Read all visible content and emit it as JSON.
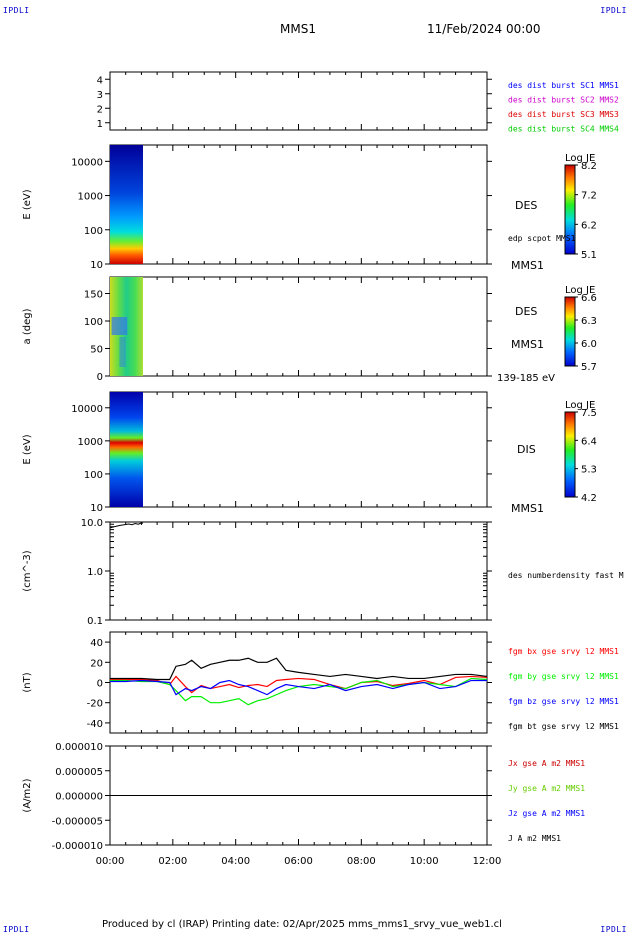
{
  "corners": {
    "tl": "IPDLI",
    "tr": "IPDLI",
    "bl": "IPDLI",
    "br": "IPDLI"
  },
  "header": {
    "spacecraft": "MMS1",
    "date": "11/Feb/2024 00:00"
  },
  "footer": {
    "text": "Produced by cl (IRAP)   Printing date: 02/Apr/2025   mms_mms1_srvy_vue_web1.cl"
  },
  "chart_data": [
    {
      "type": "line",
      "id": "sc-availability",
      "ylim": [
        0.5,
        4.5
      ],
      "yticks": [
        "1",
        "2",
        "3",
        "4"
      ],
      "legend": [
        {
          "label": "des dist burst SC1 MMS1",
          "color": "#0000ff"
        },
        {
          "label": "des dist burst SC2 MMS2",
          "color": "#cc00cc"
        },
        {
          "label": "des dist burst SC3 MMS3",
          "color": "#dd0000"
        },
        {
          "label": "des dist burst SC4 MMS4",
          "color": "#00cc00"
        }
      ]
    },
    {
      "type": "heatmap",
      "id": "des-energy",
      "ylabel": "E (eV)",
      "yscale": "log",
      "yticks": [
        "10",
        "100",
        "1000",
        "10000"
      ],
      "right_labels": [
        "DES",
        "edp scpot MMS1",
        "MMS1"
      ],
      "colorbar": {
        "label": "Log JE",
        "ticks": [
          "8.2",
          "7.2",
          "6.2",
          "5.1"
        ]
      },
      "data_time_range_hours": [
        0.0,
        1.05
      ]
    },
    {
      "type": "heatmap",
      "id": "des-pitch",
      "ylabel": "a (deg)",
      "ylim": [
        0,
        180
      ],
      "yticks": [
        "0",
        "50",
        "100",
        "150"
      ],
      "right_labels": [
        "DES",
        "MMS1",
        "139-185 eV"
      ],
      "colorbar": {
        "label": "Log JE",
        "ticks": [
          "6.6",
          "6.3",
          "6.0",
          "5.7"
        ]
      },
      "data_time_range_hours": [
        0.0,
        1.05
      ]
    },
    {
      "type": "heatmap",
      "id": "dis-energy",
      "ylabel": "E (eV)",
      "yscale": "log",
      "yticks": [
        "10",
        "100",
        "1000",
        "10000"
      ],
      "right_labels": [
        "DIS",
        "MMS1"
      ],
      "colorbar": {
        "label": "Log JE",
        "ticks": [
          "7.5",
          "6.4",
          "5.3",
          "4.2"
        ]
      },
      "data_time_range_hours": [
        0.0,
        1.05
      ]
    },
    {
      "type": "line",
      "id": "density",
      "ylabel": "(cm^-3)",
      "yscale": "log",
      "yticks": [
        "0.1",
        "1.0",
        "10.0"
      ],
      "series": [
        {
          "name": "des numberdensity fast M",
          "color": "#000000",
          "x": [
            0.0,
            0.1,
            0.2,
            0.3,
            0.4,
            0.5,
            0.6,
            0.7,
            0.8,
            0.9,
            1.0,
            1.05
          ],
          "y": [
            7.6,
            7.9,
            8.2,
            8.5,
            8.7,
            8.9,
            9.1,
            8.8,
            9.3,
            9.0,
            9.6,
            9.4
          ]
        }
      ]
    },
    {
      "type": "line",
      "id": "fgm",
      "ylabel": "(nT)",
      "ylim": [
        -50,
        50
      ],
      "yticks": [
        "-40",
        "-20",
        "0",
        "20",
        "40"
      ],
      "x": [
        0,
        0.5,
        1.0,
        1.5,
        1.9,
        2.1,
        2.4,
        2.6,
        2.9,
        3.2,
        3.5,
        3.8,
        4.1,
        4.4,
        4.7,
        5.0,
        5.3,
        5.6,
        6.0,
        6.5,
        7.0,
        7.5,
        8.0,
        8.5,
        9.0,
        9.5,
        10.0,
        10.5,
        11.0,
        11.5,
        12.0
      ],
      "series": [
        {
          "name": "fgm bx gse srvy l2 MMS1",
          "color": "#ff0000",
          "values": [
            3,
            3,
            3,
            2,
            -2,
            6,
            -4,
            -10,
            -3,
            -6,
            -4,
            -2,
            -5,
            -3,
            -2,
            -4,
            2,
            3,
            4,
            3,
            -2,
            -6,
            0,
            1,
            -3,
            -1,
            2,
            -2,
            5,
            6,
            5
          ]
        },
        {
          "name": "fgm by gse srvy l2 MMS1",
          "color": "#00ee00",
          "values": [
            2,
            2,
            1,
            1,
            -2,
            -8,
            -18,
            -14,
            -14,
            -20,
            -20,
            -18,
            -16,
            -22,
            -18,
            -16,
            -12,
            -8,
            -4,
            -2,
            -4,
            -6,
            0,
            2,
            -4,
            -2,
            0,
            -2,
            -4,
            4,
            3
          ]
        },
        {
          "name": "fgm bz gse srvy l2 MMS1",
          "color": "#0000ff",
          "values": [
            1,
            1,
            2,
            1,
            0,
            -12,
            -6,
            -8,
            -4,
            -6,
            0,
            2,
            -2,
            -4,
            -8,
            -12,
            -6,
            -2,
            -4,
            -6,
            -2,
            -8,
            -4,
            -2,
            -6,
            -2,
            0,
            -6,
            -4,
            2,
            2
          ]
        },
        {
          "name": "fgm bt gse srvy l2 MMS1",
          "color": "#000000",
          "values": [
            4,
            4,
            4,
            3,
            3,
            16,
            18,
            22,
            14,
            18,
            20,
            22,
            22,
            24,
            20,
            20,
            24,
            12,
            10,
            8,
            6,
            8,
            6,
            4,
            6,
            4,
            4,
            6,
            8,
            8,
            6
          ]
        }
      ]
    },
    {
      "type": "line",
      "id": "current",
      "ylabel": "(A/m2)",
      "ylim": [
        -1e-05,
        1e-05
      ],
      "yticks": [
        "-0.000010",
        "-0.000005",
        "0.000000",
        "0.000005",
        "0.000010"
      ],
      "xticks": [
        "00:00",
        "02:00",
        "04:00",
        "06:00",
        "08:00",
        "10:00",
        "12:00"
      ],
      "x": [
        0,
        2,
        4,
        6,
        8,
        10,
        12
      ],
      "series": [
        {
          "name": "Jx gse A m2 MMS1",
          "color": "#cc0000",
          "values": [
            0,
            0,
            0,
            0,
            0,
            0,
            0
          ]
        },
        {
          "name": "Jy gse A m2 MMS1",
          "color": "#66cc00",
          "values": [
            0,
            0,
            0,
            0,
            0,
            0,
            0
          ]
        },
        {
          "name": "Jz gse A m2 MMS1",
          "color": "#0000ff",
          "values": [
            0,
            0,
            0,
            0,
            0,
            0,
            0
          ]
        },
        {
          "name": "J A m2 MMS1",
          "color": "#000000",
          "values": [
            0,
            0,
            0,
            0,
            0,
            0,
            0
          ]
        }
      ]
    }
  ]
}
